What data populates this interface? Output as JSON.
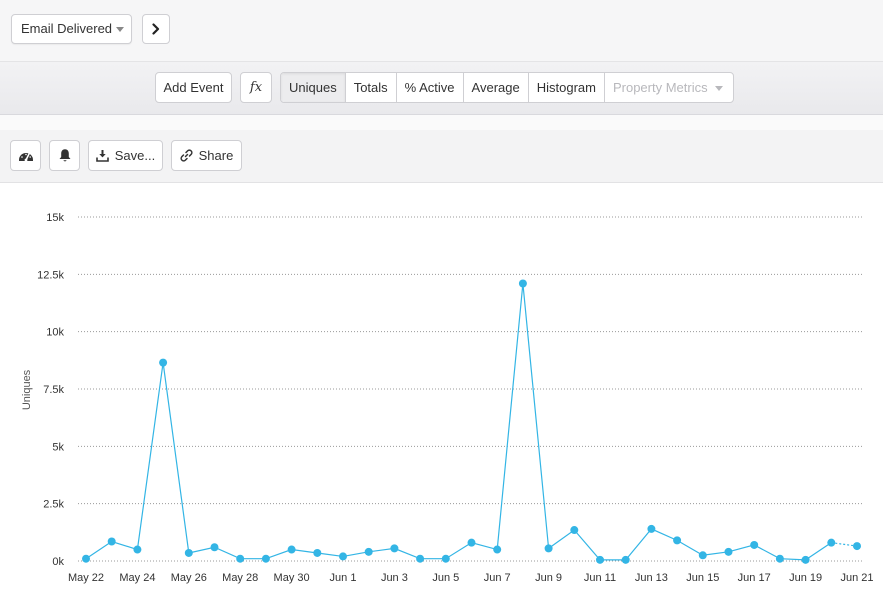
{
  "header": {
    "event_select": "Email Delivered",
    "next_icon": "chevron-right-icon"
  },
  "metric_bar": {
    "add_event": "Add Event",
    "formula": "fx",
    "tabs": [
      {
        "label": "Uniques",
        "active": true
      },
      {
        "label": "Totals",
        "active": false
      },
      {
        "label": "% Active",
        "active": false
      },
      {
        "label": "Average",
        "active": false
      },
      {
        "label": "Histogram",
        "active": false
      },
      {
        "label": "Property Metrics",
        "active": false,
        "disabled": true
      }
    ]
  },
  "toolbar": {
    "dashboard_icon": "dashboard-icon",
    "alert_icon": "bell-icon",
    "save_label": "Save...",
    "share_label": "Share"
  },
  "colors": {
    "series": "#33b5e5",
    "grid": "#9a9a9a"
  },
  "chart_data": {
    "type": "line",
    "ylabel": "Uniques",
    "xlabel": "",
    "ylim": [
      0,
      15000
    ],
    "yticks": [
      "0k",
      "2.5k",
      "5k",
      "7.5k",
      "10k",
      "12.5k",
      "15k"
    ],
    "x_tick_labels": [
      "May 22",
      "May 24",
      "May 26",
      "May 28",
      "May 30",
      "Jun 1",
      "Jun 3",
      "Jun 5",
      "Jun 7",
      "Jun 9",
      "Jun 11",
      "Jun 13",
      "Jun 15",
      "Jun 17",
      "Jun 19",
      "Jun 21"
    ],
    "grid": "horizontal dotted",
    "x": [
      "May 22",
      "May 23",
      "May 24",
      "May 25",
      "May 26",
      "May 27",
      "May 28",
      "May 29",
      "May 30",
      "May 31",
      "Jun 1",
      "Jun 2",
      "Jun 3",
      "Jun 4",
      "Jun 5",
      "Jun 6",
      "Jun 7",
      "Jun 8",
      "Jun 9",
      "Jun 10",
      "Jun 11",
      "Jun 12",
      "Jun 13",
      "Jun 14",
      "Jun 15",
      "Jun 16",
      "Jun 17",
      "Jun 18",
      "Jun 19",
      "Jun 20",
      "Jun 21"
    ],
    "series": [
      {
        "values": [
          100,
          850,
          500,
          8650,
          350,
          600,
          100,
          100,
          500,
          350,
          200,
          400,
          550,
          100,
          100,
          800,
          500,
          12100,
          550,
          1350,
          50,
          50,
          1400,
          900,
          250,
          400,
          700,
          100,
          50,
          800,
          650
        ],
        "last_segment_dotted": true
      }
    ]
  }
}
